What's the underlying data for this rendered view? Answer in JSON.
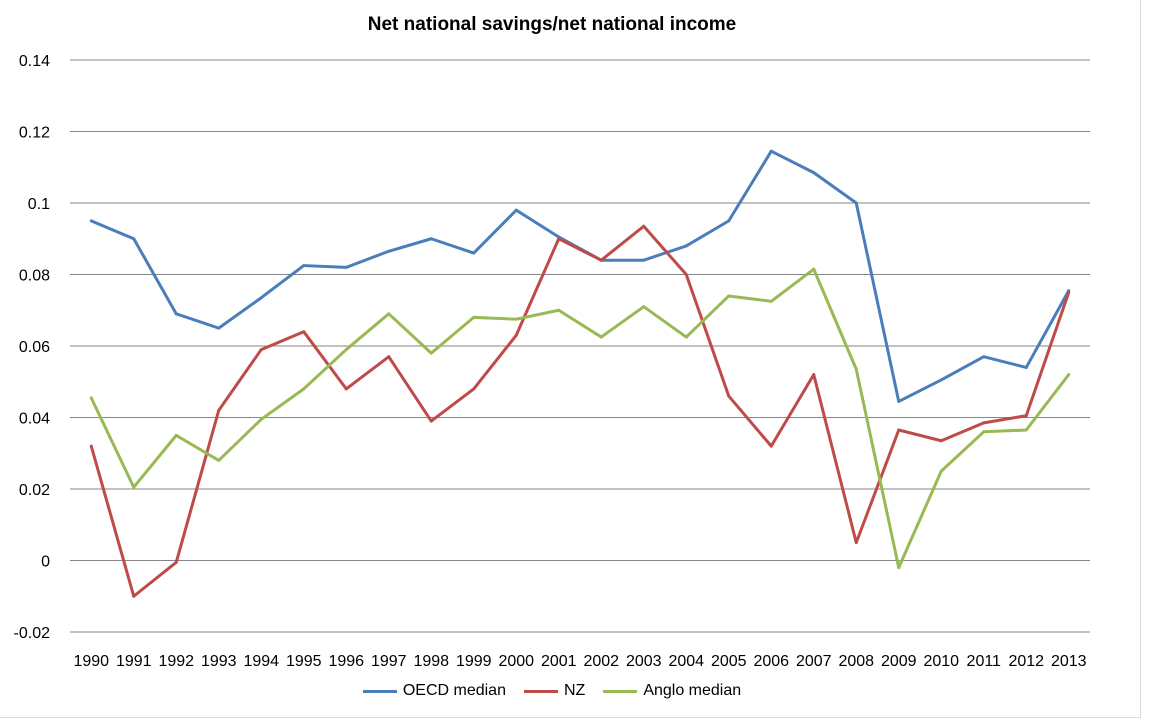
{
  "chart_data": {
    "type": "line",
    "title": "Net national savings/net national income",
    "xlabel": "",
    "ylabel": "",
    "ylim": [
      -0.02,
      0.14
    ],
    "yticks": [
      "0.14",
      "0.12",
      "0.1",
      "0.08",
      "0.06",
      "0.04",
      "0.02",
      "0",
      "-0.02"
    ],
    "ytick_values": [
      0.14,
      0.12,
      0.1,
      0.08,
      0.06,
      0.04,
      0.02,
      0,
      -0.02
    ],
    "grid": true,
    "legend_position": "bottom",
    "categories": [
      "1990",
      "1991",
      "1992",
      "1993",
      "1994",
      "1995",
      "1996",
      "1997",
      "1998",
      "1999",
      "2000",
      "2001",
      "2002",
      "2003",
      "2004",
      "2005",
      "2006",
      "2007",
      "2008",
      "2009",
      "2010",
      "2011",
      "2012",
      "2013"
    ],
    "series": [
      {
        "name": "OECD median",
        "color": "#4a7ebb",
        "values": [
          0.095,
          0.09,
          0.069,
          0.065,
          0.0735,
          0.0825,
          0.082,
          0.0865,
          0.09,
          0.086,
          0.098,
          0.0905,
          0.084,
          0.084,
          0.088,
          0.095,
          0.1145,
          0.1085,
          0.1,
          0.0445,
          0.0505,
          0.057,
          0.054,
          0.0755
        ]
      },
      {
        "name": "NZ",
        "color": "#be4b48",
        "values": [
          0.032,
          -0.01,
          -0.0005,
          0.042,
          0.059,
          0.064,
          0.048,
          0.057,
          0.039,
          0.048,
          0.063,
          0.09,
          0.084,
          0.0935,
          0.08,
          0.046,
          0.032,
          0.052,
          0.005,
          0.0365,
          0.0335,
          0.0385,
          0.0405,
          0.075
        ]
      },
      {
        "name": "Anglo median",
        "color": "#98b954",
        "values": [
          0.0455,
          0.0205,
          0.035,
          0.028,
          0.0395,
          0.048,
          0.059,
          0.069,
          0.058,
          0.068,
          0.0675,
          0.07,
          0.0625,
          0.071,
          0.0625,
          0.074,
          0.0725,
          0.0815,
          0.0535,
          -0.002,
          0.025,
          0.036,
          0.0365,
          0.052
        ]
      }
    ]
  }
}
